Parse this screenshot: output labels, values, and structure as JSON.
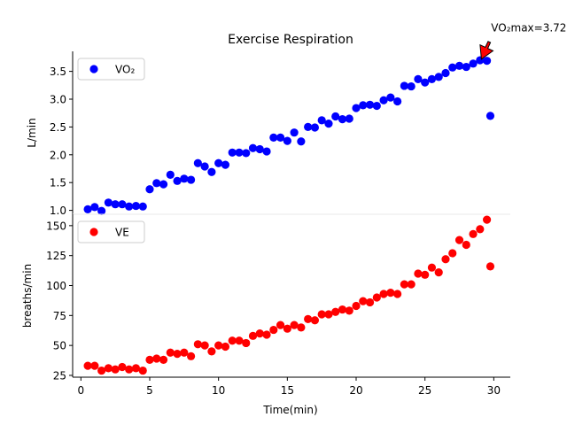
{
  "chart_data": {
    "type": "scatter",
    "title": "Exercise Respiration",
    "xlabel": "Time(min)",
    "xlim": [
      -0.6,
      31.2
    ],
    "xticks": [
      0,
      5,
      10,
      15,
      20,
      25,
      30
    ],
    "grid": false,
    "panels": [
      {
        "ylabel": "L/min",
        "ylim": [
          0.93,
          3.86
        ],
        "yticks": [
          1.0,
          1.5,
          2.0,
          2.5,
          3.0,
          3.5
        ],
        "ytick_labels": [
          "1.0",
          "1.5",
          "2.0",
          "2.5",
          "3.0",
          "3.5"
        ],
        "legend_position": "upper-left",
        "series": [
          {
            "name": "VO₂",
            "color": "#0000ff",
            "x": [
              0.5,
              1.0,
              1.5,
              2.0,
              2.5,
              3.0,
              3.5,
              4.0,
              4.5,
              5.0,
              5.5,
              6.0,
              6.5,
              7.0,
              7.5,
              8.0,
              8.5,
              9.0,
              9.5,
              10.0,
              10.5,
              11.0,
              11.5,
              12.0,
              12.5,
              13.0,
              13.5,
              14.0,
              14.5,
              15.0,
              15.5,
              16.0,
              16.5,
              17.0,
              17.5,
              18.0,
              18.5,
              19.0,
              19.5,
              20.0,
              20.5,
              21.0,
              21.5,
              22.0,
              22.5,
              23.0,
              23.5,
              24.0,
              24.5,
              25.0,
              25.5,
              26.0,
              26.5,
              27.0,
              27.5,
              28.0,
              28.5,
              29.0,
              29.5,
              29.75
            ],
            "y": [
              1.02,
              1.06,
              0.99,
              1.14,
              1.11,
              1.11,
              1.07,
              1.08,
              1.07,
              1.38,
              1.49,
              1.47,
              1.64,
              1.53,
              1.57,
              1.55,
              1.85,
              1.79,
              1.69,
              1.85,
              1.82,
              2.04,
              2.04,
              2.03,
              2.12,
              2.1,
              2.06,
              2.31,
              2.31,
              2.25,
              2.4,
              2.24,
              2.5,
              2.49,
              2.62,
              2.56,
              2.69,
              2.64,
              2.65,
              2.84,
              2.89,
              2.9,
              2.88,
              2.98,
              3.03,
              2.96,
              3.24,
              3.23,
              3.36,
              3.3,
              3.36,
              3.4,
              3.47,
              3.57,
              3.6,
              3.58,
              3.64,
              3.7,
              3.69,
              2.7
            ]
          }
        ],
        "annotation": {
          "text": "VO₂max=3.72",
          "point": [
            29.1,
            3.72
          ],
          "text_position": [
            29.8,
            4.22
          ]
        }
      },
      {
        "ylabel": "breaths/min",
        "ylim": [
          23.5,
          159.5
        ],
        "yticks": [
          25,
          50,
          75,
          100,
          125,
          150
        ],
        "ytick_labels": [
          "25",
          "50",
          "75",
          "100",
          "125",
          "150"
        ],
        "legend_position": "upper-left",
        "series": [
          {
            "name": "VE",
            "color": "#ff0000",
            "x": [
              0.5,
              1.0,
              1.5,
              2.0,
              2.5,
              3.0,
              3.5,
              4.0,
              4.5,
              5.0,
              5.5,
              6.0,
              6.5,
              7.0,
              7.5,
              8.0,
              8.5,
              9.0,
              9.5,
              10.0,
              10.5,
              11.0,
              11.5,
              12.0,
              12.5,
              13.0,
              13.5,
              14.0,
              14.5,
              15.0,
              15.5,
              16.0,
              16.5,
              17.0,
              17.5,
              18.0,
              18.5,
              19.0,
              19.5,
              20.0,
              20.5,
              21.0,
              21.5,
              22.0,
              22.5,
              23.0,
              23.5,
              24.0,
              24.5,
              25.0,
              25.5,
              26.0,
              26.5,
              27.0,
              27.5,
              28.0,
              28.5,
              29.0,
              29.5,
              29.75
            ],
            "y": [
              33,
              33,
              29,
              31,
              30,
              32,
              30,
              31,
              29,
              38,
              39,
              38,
              44,
              43,
              44,
              41,
              51,
              50,
              45,
              50,
              49,
              54,
              54,
              52,
              58,
              60,
              59,
              63,
              67,
              64,
              67,
              65,
              72,
              71,
              76,
              76,
              78,
              80,
              79,
              83,
              87,
              86,
              90,
              93,
              94,
              93,
              101,
              101,
              110,
              109,
              115,
              111,
              122,
              127,
              138,
              134,
              143,
              147,
              155,
              116
            ]
          }
        ]
      }
    ]
  }
}
